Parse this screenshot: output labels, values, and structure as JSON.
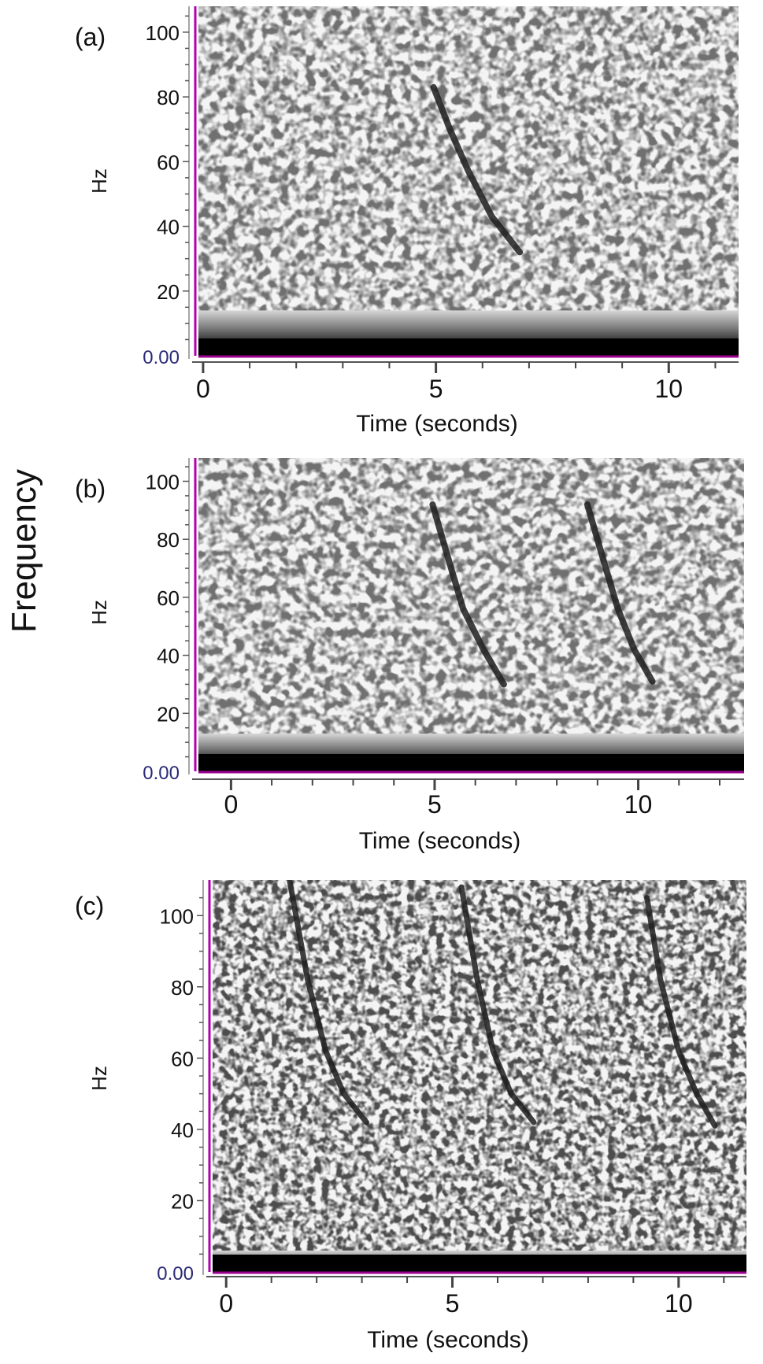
{
  "figure": {
    "shared_ylabel": "Frequency"
  },
  "chart_data": [
    {
      "type": "heatmap",
      "panel_label": "(a)",
      "xlabel": "Time (seconds)",
      "ylabel": "Hz",
      "xlim": [
        -0.1,
        11.5
      ],
      "ylim": [
        0,
        108
      ],
      "x_ticks": [
        0,
        5,
        10
      ],
      "y_ticks": [
        0,
        20,
        40,
        60,
        80,
        100
      ],
      "y_tick_labels": [
        "0.00",
        "20",
        "40",
        "60",
        "80",
        "100"
      ],
      "calls": [
        {
          "t": [
            4.95,
            5.3,
            5.7,
            6.2,
            6.8
          ],
          "f": [
            83,
            70,
            57,
            43,
            32
          ]
        }
      ],
      "low_band_hz": 14
    },
    {
      "type": "heatmap",
      "panel_label": "(b)",
      "xlabel": "Time (seconds)",
      "ylabel": "Hz",
      "xlim": [
        -0.8,
        12.6
      ],
      "ylim": [
        0,
        108
      ],
      "x_ticks": [
        0,
        5,
        10
      ],
      "y_ticks": [
        0,
        20,
        40,
        60,
        80,
        100
      ],
      "y_tick_labels": [
        "0.00",
        "20",
        "40",
        "60",
        "80",
        "100"
      ],
      "calls": [
        {
          "t": [
            4.95,
            5.3,
            5.7,
            6.2,
            6.7
          ],
          "f": [
            92,
            75,
            56,
            42,
            30
          ]
        },
        {
          "t": [
            8.75,
            9.1,
            9.5,
            9.9,
            10.35
          ],
          "f": [
            92,
            75,
            56,
            42,
            31
          ]
        }
      ],
      "low_band_hz": 13
    },
    {
      "type": "heatmap",
      "panel_label": "(c)",
      "xlabel": "Time (seconds)",
      "ylabel": "Hz",
      "xlim": [
        -0.3,
        11.5
      ],
      "ylim": [
        0,
        110
      ],
      "x_ticks": [
        0,
        5,
        10
      ],
      "y_ticks": [
        0,
        20,
        40,
        60,
        80,
        100
      ],
      "y_tick_labels": [
        "0.00",
        "20",
        "40",
        "60",
        "80",
        "100"
      ],
      "calls": [
        {
          "t": [
            1.4,
            1.8,
            2.2,
            2.6,
            3.1
          ],
          "f": [
            110,
            82,
            62,
            50,
            42
          ]
        },
        {
          "t": [
            5.2,
            5.55,
            5.9,
            6.3,
            6.8
          ],
          "f": [
            108,
            82,
            62,
            50,
            42
          ]
        },
        {
          "t": [
            9.3,
            9.6,
            10.0,
            10.4,
            10.8
          ],
          "f": [
            105,
            82,
            62,
            50,
            41
          ]
        }
      ],
      "low_band_hz": 6
    }
  ]
}
